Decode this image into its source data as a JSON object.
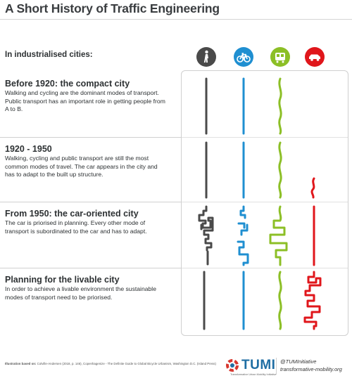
{
  "title": "A Short History of Traffic Engineering",
  "intro": "In industrialised cities:",
  "modes": [
    {
      "name": "walking",
      "icon": "pedestrian-icon",
      "color": "#4a4a4a"
    },
    {
      "name": "cycling",
      "icon": "bicycle-icon",
      "color": "#1f8fd1"
    },
    {
      "name": "public transport",
      "icon": "tram-icon",
      "color": "#8cbf26"
    },
    {
      "name": "car",
      "icon": "car-icon",
      "color": "#e0161b"
    }
  ],
  "eras": [
    {
      "title": "Before 1920: the compact city",
      "description": "Walking and cycling are the dominant modes of transport. Public transport has an important role in getting people from A to B."
    },
    {
      "title": "1920 - 1950",
      "description": "Walking, cycling and public transport are still the most common modes of travel. The car appears in the city and has to adapt to the built up structure."
    },
    {
      "title": "From 1950: the car-oriented city",
      "description": "The car is priorised in planning. Every other mode of transport is subordinated to the car and has to adapt."
    },
    {
      "title": "Planning for the livable city",
      "description": "In order to achieve a livable environment the sustainable modes of transport need to be priorised."
    }
  ],
  "footer": {
    "source_label": "Illustration based on:",
    "source_text": "Colville-Andersen (2018, p. 146), Copenhagenize - The Definite Guide to Global Bicycle Urbanism, Washington D.C. (Island Press)",
    "org_name": "TUMI",
    "org_subtitle": "Transformative Urban Mobility Initiative",
    "handle": "@TUMInitiative",
    "website": "transformative-mobility.org"
  }
}
